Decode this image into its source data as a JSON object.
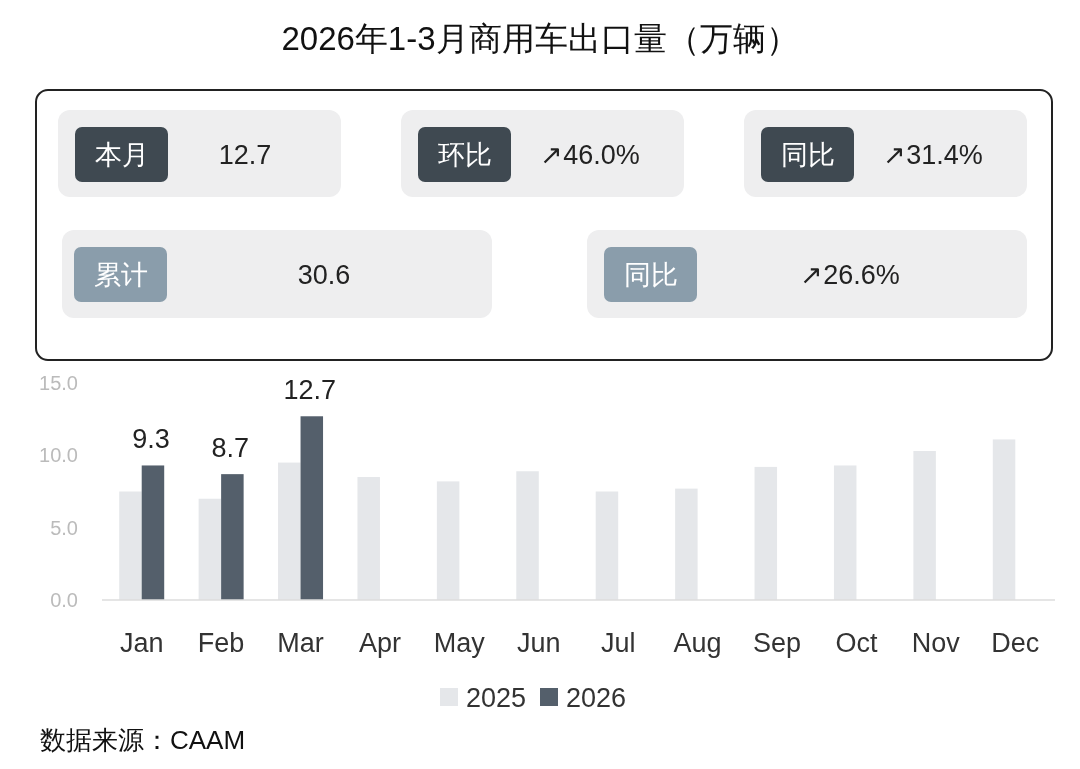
{
  "chart_data": [
    {
      "type": "other",
      "title": "2026年1-3月商用车出口量（万辆）",
      "annotations": [
        "本月",
        "12.7",
        "环比",
        "↗46.0%",
        "同比",
        "↗31.4%",
        "累计",
        "30.6",
        "同比",
        "↗26.6%"
      ]
    },
    {
      "type": "bar",
      "categories": [
        "Jan",
        "Feb",
        "Mar",
        "Apr",
        "May",
        "Jun",
        "Jul",
        "Aug",
        "Sep",
        "Oct",
        "Nov",
        "Dec"
      ],
      "series": [
        {
          "name": "2025",
          "color": "#e5e7ea",
          "values": [
            7.5,
            7.0,
            9.5,
            8.5,
            8.2,
            8.9,
            7.5,
            7.7,
            9.2,
            9.3,
            10.3,
            11.1
          ]
        },
        {
          "name": "2026",
          "color": "#545f6b",
          "values": [
            9.3,
            8.7,
            12.7,
            null,
            null,
            null,
            null,
            null,
            null,
            null,
            null,
            null
          ],
          "value_labels": [
            "9.3",
            "8.7",
            "12.7",
            null,
            null,
            null,
            null,
            null,
            null,
            null,
            null,
            null
          ]
        }
      ],
      "ylim": [
        0,
        15
      ],
      "yticks": [
        {
          "value": 0,
          "label": "0.0"
        },
        {
          "value": 5,
          "label": "5.0"
        },
        {
          "value": 10,
          "label": "10.0"
        },
        {
          "value": 15,
          "label": "15.0"
        }
      ],
      "grid": false,
      "legend": "bottom",
      "annotations": [
        "数据来源：CAAM"
      ]
    }
  ]
}
